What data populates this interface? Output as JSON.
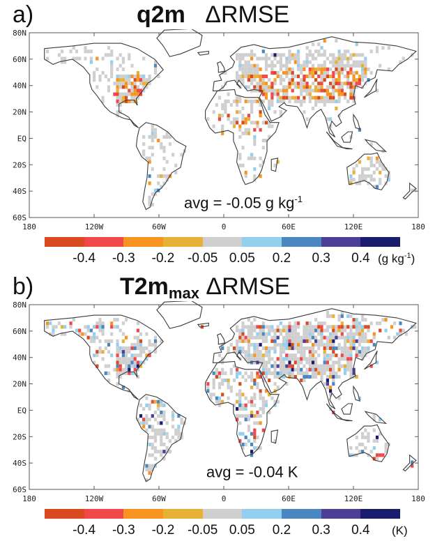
{
  "colorbar": {
    "colors": [
      "#d94a1e",
      "#f04848",
      "#f79420",
      "#e8b034",
      "#cfcfcf",
      "#93cfee",
      "#4a86c0",
      "#4c3f98",
      "#1a1d6e"
    ],
    "ticks": [
      "-0.4",
      "-0.3",
      "-0.2",
      "-0.05",
      "0.05",
      "0.2",
      "0.3",
      "0.4"
    ]
  },
  "axes": {
    "x_ticks": [
      "180",
      "120W",
      "60W",
      "0",
      "60E",
      "120E",
      "180"
    ],
    "y_ticks": [
      "80N",
      "60N",
      "40N",
      "20N",
      "EQ",
      "20S",
      "40S",
      "60S"
    ]
  },
  "panels": [
    {
      "letter": "a)",
      "title_main": "q2m",
      "title_sub": "",
      "title_rest": "ΔRMSE",
      "avg_text": "avg = -0.05 g kg",
      "avg_sup": "-1",
      "unit_text": "(g kg",
      "unit_sup": "-1",
      "unit_close": ")"
    },
    {
      "letter": "b)",
      "title_main": "T2m",
      "title_sub": "max",
      "title_rest": "ΔRMSE",
      "avg_text": "avg = -0.04 K",
      "avg_sup": "",
      "unit_text": "(K)",
      "unit_sup": "",
      "unit_close": ""
    }
  ]
}
